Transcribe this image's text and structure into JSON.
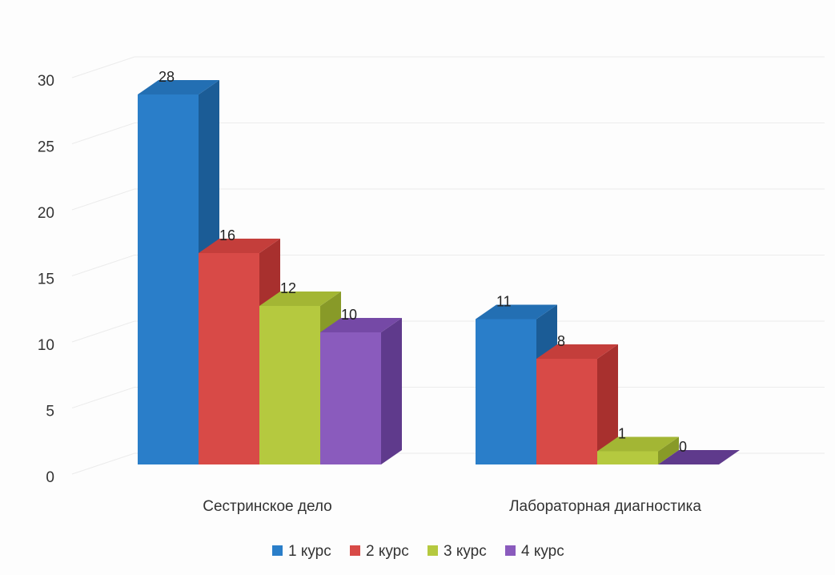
{
  "chart_data": {
    "type": "bar",
    "three_d": true,
    "categories": [
      "Сестринское дело",
      "Лабораторная диагностика"
    ],
    "series": [
      {
        "name": "1 курс",
        "values": [
          28,
          11
        ],
        "color": "#2a7ec9",
        "side_color": "#1b5c96",
        "top_color": "#236fb3"
      },
      {
        "name": "2 курс",
        "values": [
          16,
          8
        ],
        "color": "#d84a47",
        "side_color": "#a8302e",
        "top_color": "#c43e3b"
      },
      {
        "name": "3 курс",
        "values": [
          12,
          1
        ],
        "color": "#b5c93f",
        "side_color": "#889a28",
        "top_color": "#a3b634"
      },
      {
        "name": "4 курс",
        "values": [
          10,
          0
        ],
        "color": "#8a5bbd",
        "side_color": "#5f3a8c",
        "top_color": "#7549a6"
      }
    ],
    "y_ticks": [
      "0",
      "5",
      "10",
      "15",
      "20",
      "25",
      "30"
    ],
    "ylim": [
      0,
      30
    ],
    "grid": true,
    "legend_position": "bottom",
    "data_labels": true
  }
}
